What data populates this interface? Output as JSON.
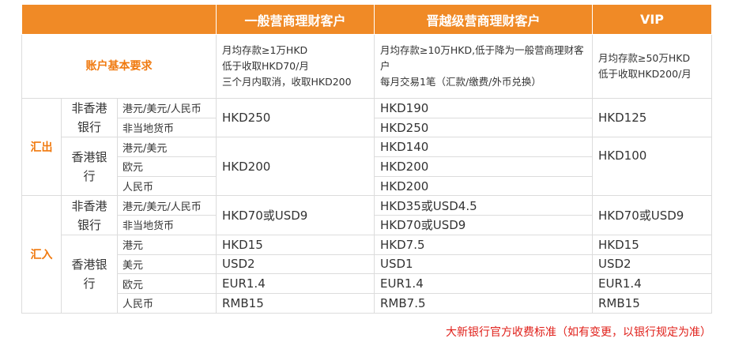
{
  "table": {
    "headers": [
      "一般营商理财客户",
      "晋越级营商理财客户",
      "VIP"
    ],
    "requirements": {
      "label": "账户基本要求",
      "cells": [
        [
          "月均存款≥1万HKD",
          "低于收取HKD70/月",
          "三个月内取消，收取HKD200"
        ],
        [
          "月均存款≥10万HKD,低于降为一般营商理财客户",
          "每月交易1笔（汇款/缴费/外币兑换）"
        ],
        [
          "月均存款≥50万HKD",
          "低于收取HKD200/月"
        ]
      ]
    },
    "outward": {
      "label": "汇出",
      "non_hk": {
        "label": "非香港银行",
        "currencies": [
          "港元/美元/人民币",
          "非当地货币"
        ],
        "general": "HKD250",
        "advance": [
          "HKD190",
          "HKD250"
        ],
        "vip": "HKD125"
      },
      "hk": {
        "label": "香港银行",
        "currencies": [
          "港元/美元",
          "欧元",
          "人民币"
        ],
        "general": "HKD200",
        "advance": [
          "HKD140",
          "HKD200",
          "HKD200"
        ],
        "vip": "HKD100"
      }
    },
    "inward": {
      "label": "汇入",
      "non_hk": {
        "label": "非香港银行",
        "currencies": [
          "港元/美元/人民币",
          "非当地货币"
        ],
        "general": "HKD70或USD9",
        "advance": [
          "HKD35或USD4.5",
          "HKD70或USD9"
        ],
        "vip": "HKD70或USD9"
      },
      "hk": {
        "label": "香港银行",
        "rows": [
          [
            "港元",
            "HKD15",
            "HKD7.5",
            "HKD15"
          ],
          [
            "美元",
            "USD2",
            "USD1",
            "USD2"
          ],
          [
            "欧元",
            "EUR1.4",
            "EUR1.4",
            "EUR1.4"
          ],
          [
            "人民币",
            "RMB15",
            "RMB7.5",
            "RMB15"
          ]
        ]
      }
    }
  },
  "note": "大新银行官方收费标准（如有变更，以银行规定为准）"
}
